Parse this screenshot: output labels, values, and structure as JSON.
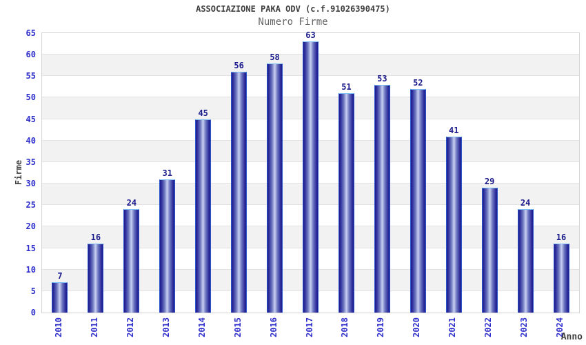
{
  "chart_data": {
    "type": "bar",
    "title": "ASSOCIAZIONE PAKA ODV (c.f.91026390475)",
    "subtitle": "Numero Firme",
    "xlabel": "Anno",
    "ylabel": "Firme",
    "categories": [
      "2010",
      "2011",
      "2012",
      "2013",
      "2014",
      "2015",
      "2016",
      "2017",
      "2018",
      "2019",
      "2020",
      "2021",
      "2022",
      "2023",
      "2024"
    ],
    "values": [
      7,
      16,
      24,
      31,
      45,
      56,
      58,
      63,
      51,
      53,
      52,
      41,
      29,
      24,
      16
    ],
    "ylim": [
      0,
      65
    ],
    "ytick_step": 5,
    "yticks": [
      0,
      5,
      10,
      15,
      20,
      25,
      30,
      35,
      40,
      45,
      50,
      55,
      60,
      65
    ],
    "legend": "none",
    "grid": "alternating-horizontal-bands",
    "value_labels": "above-bars",
    "colors": {
      "tick_label": "#2e2ecc",
      "value_label": "#1a1a8c",
      "title": "#3f3f3f",
      "subtitle": "#666666",
      "band_white": "#ffffff",
      "band_gray": "#f2f2f2",
      "grid_line": "#e2e2e2",
      "plot_border": "#d4d4d4",
      "bar_dark": "#1b1b8a",
      "bar_mid": "#6f7ac0",
      "bar_light": "#c9d0f2",
      "bar_border_side": "#2f55cc",
      "bar_border_top": "#7cc0f8"
    }
  }
}
